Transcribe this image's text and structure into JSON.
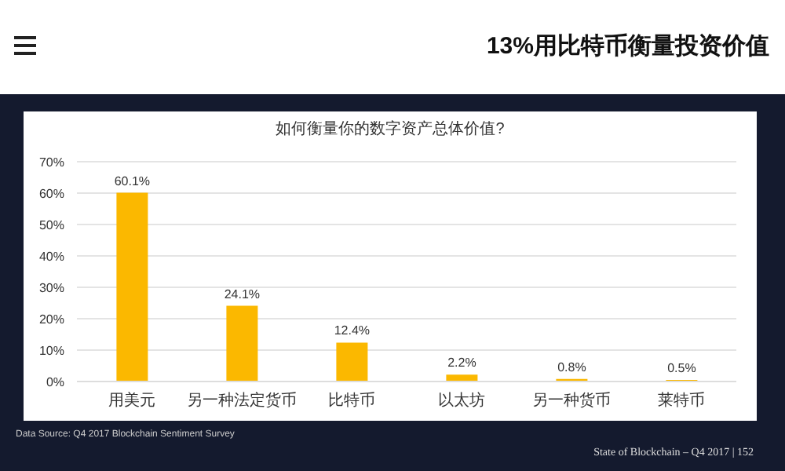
{
  "chart_data": {
    "type": "bar",
    "title": "13%用比特币衡量投资价值",
    "subtitle": "如何衡量你的数字资产总体价值?",
    "categories": [
      "用美元",
      "另一种法定货币",
      "比特币",
      "以太坊",
      "另一种货币",
      "莱特币"
    ],
    "values": [
      60.1,
      24.1,
      12.4,
      2.2,
      0.8,
      0.5
    ],
    "value_labels": [
      "60.1%",
      "24.1%",
      "12.4%",
      "2.2%",
      "0.8%",
      "0.5%"
    ],
    "color": "#fbb800",
    "ylim": [
      0,
      70
    ],
    "yticks": [
      {
        "value": 0,
        "label": "0%"
      },
      {
        "value": 10,
        "label": "10%"
      },
      {
        "value": 20,
        "label": "20%"
      },
      {
        "value": 30,
        "label": "30%"
      },
      {
        "value": 40,
        "label": "40%"
      },
      {
        "value": 50,
        "label": "50%"
      },
      {
        "value": 60,
        "label": "60%"
      },
      {
        "value": 70,
        "label": "70%"
      }
    ],
    "grid": "y",
    "annotations": [
      "Data Source: Q4 2017 Blockchain Sentiment Survey",
      "State of Blockchain – Q4 2017 | 152"
    ]
  }
}
